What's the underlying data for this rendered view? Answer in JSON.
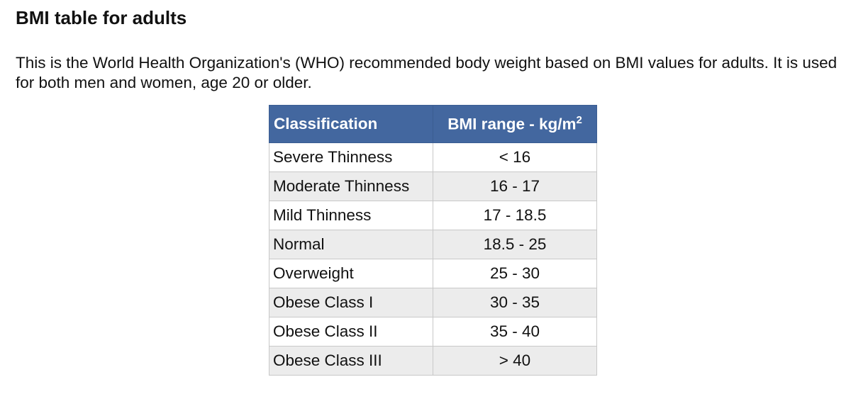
{
  "header": {
    "title": "BMI table for adults"
  },
  "intro": "This is the World Health Organization's (WHO) recommended body weight based on BMI values for adults. It is used for both men and women, age 20 or older.",
  "table": {
    "columns": [
      "Classification",
      {
        "text": "BMI range - kg/m",
        "sup": "2"
      }
    ],
    "rows": [
      [
        "Severe Thinness",
        "< 16"
      ],
      [
        "Moderate Thinness",
        "16 - 17"
      ],
      [
        "Mild Thinness",
        "17 - 18.5"
      ],
      [
        "Normal",
        "18.5 - 25"
      ],
      [
        "Overweight",
        "25 - 30"
      ],
      [
        "Obese Class I",
        "30 - 35"
      ],
      [
        "Obese Class II",
        "35 - 40"
      ],
      [
        "Obese Class III",
        "> 40"
      ]
    ]
  }
}
